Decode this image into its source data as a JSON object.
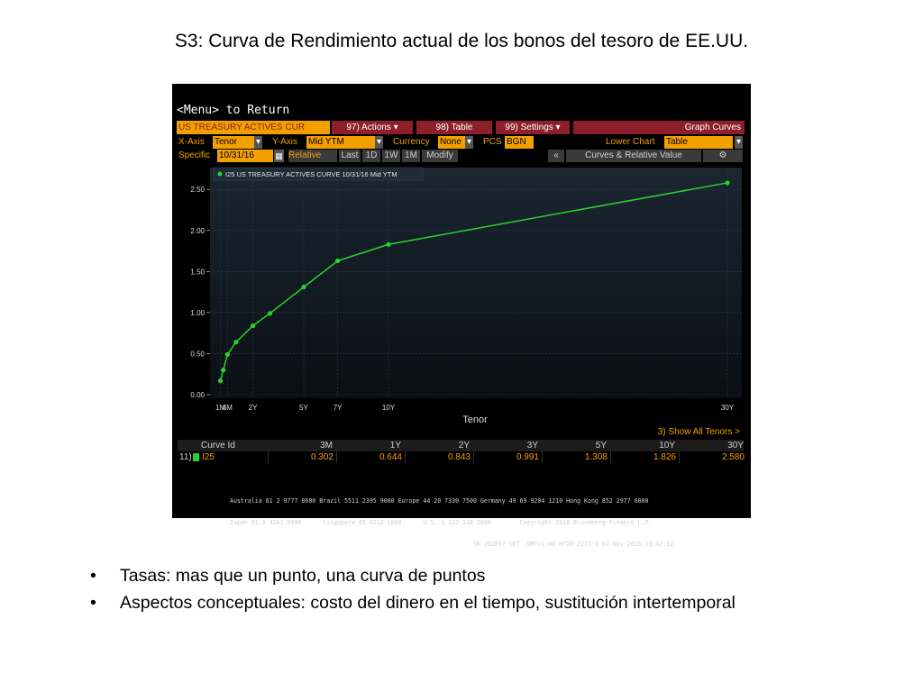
{
  "slide": {
    "title": "S3: Curva de Rendimiento actual de los bonos del tesoro de EE.UU.",
    "bullets": [
      "Tasas: mas que un punto, una curva de puntos",
      "Aspectos conceptuales: costo del dinero en el tiempo, sustitución intertemporal"
    ]
  },
  "terminal": {
    "menu_text": "<Menu> to Return",
    "toolbar": {
      "curve_name": "US TREASURY ACTIVES CUR",
      "actions_label": "97) Actions ▾",
      "table_label": "98) Table",
      "settings_label": "99) Settings ▾",
      "graph_curves_label": "Graph Curves"
    },
    "axis_row": {
      "xaxis_label": "X-Axis",
      "xaxis_value": "Tenor",
      "yaxis_label": "Y-Axis",
      "yaxis_value": "Mid YTM",
      "currency_label": "Currency",
      "currency_value": "None",
      "pcs_label": "PCS",
      "pcs_value": "BGN",
      "lower_chart_label": "Lower Chart",
      "lower_chart_value": "Table"
    },
    "date_row": {
      "specific_label": "Specific",
      "date_value": "10/31/16",
      "relative_label": "Relative",
      "buttons": [
        "Last",
        "1D",
        "1W",
        "1M",
        "Modify"
      ],
      "collapse_label": "«",
      "curves_label": "Curves & Relative Value"
    },
    "show_all_tenors": "3) Show All Tenors >",
    "table": {
      "headers": [
        "Curve Id",
        "3M",
        "1Y",
        "2Y",
        "3Y",
        "5Y",
        "10Y",
        "30Y"
      ],
      "row": {
        "index": "11)",
        "curve_id": "I25",
        "values": [
          "0.302",
          "0.644",
          "0.843",
          "0.991",
          "1.308",
          "1.826",
          "2.580"
        ]
      }
    },
    "footer_lines": [
      "Australia 61 2 9777 8600 Brazil 5511 2395 9000 Europe 44 20 7330 7500 Germany 49 69 9204 1210 Hong Kong 852 2977 6000",
      "Japan 81 3 3201 8900      Singapore 65 6212 1000      U.S. 1 212 318 2000        Copyright 2016 Bloomberg Finance L.P.",
      "                                                                    SN 292897 CET  GMT+1:00 H720-2272-3 02-Nov-2016 13:42:12"
    ]
  },
  "chart_data": {
    "type": "line",
    "legend": "I25 US TREASURY ACTIVES CURVE 10/31/16 Mid YTM",
    "legend_position": "top-left",
    "xlabel": "Tenor",
    "ylabel": "",
    "x_tick_labels": [
      "1M",
      "6M",
      "2Y",
      "5Y",
      "7Y",
      "10Y",
      "30Y"
    ],
    "x_tick_years": [
      0.0833,
      0.5,
      2,
      5,
      7,
      10,
      30
    ],
    "y_ticks": [
      "0.00",
      "0.50",
      "1.00",
      "1.50",
      "2.00",
      "2.50"
    ],
    "ylim": [
      0,
      2.7
    ],
    "grid": true,
    "line_color": "#2bd12b",
    "series": [
      {
        "tenors_years": [
          0.0833,
          0.25,
          0.5,
          1,
          2,
          3,
          5,
          7,
          10,
          30
        ],
        "values": [
          0.17,
          0.3,
          0.49,
          0.64,
          0.84,
          0.99,
          1.31,
          1.63,
          1.83,
          2.58
        ]
      }
    ]
  }
}
